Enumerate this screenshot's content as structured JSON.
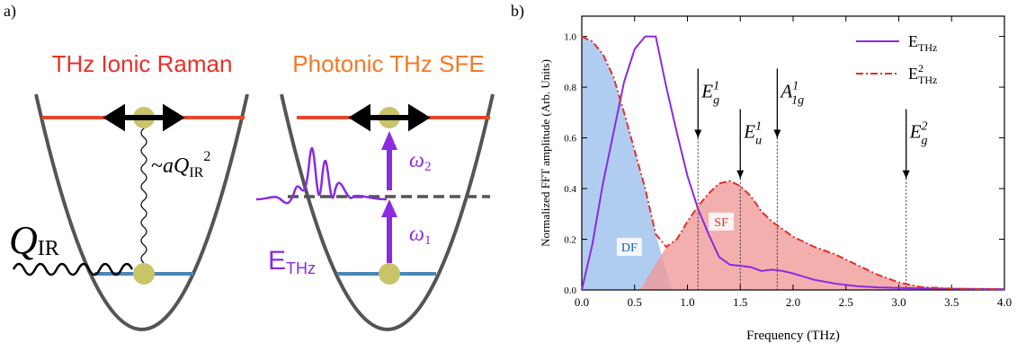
{
  "panel_a": {
    "label": "a)",
    "title_left": "THz Ionic Raman",
    "title_right": "Photonic THz SFE",
    "coupling": {
      "prefix": "~",
      "a": "a",
      "q": "Q",
      "sub": "IR",
      "sup": "2"
    },
    "q_ir": {
      "q": "Q",
      "sub": "IR"
    },
    "e_thz": {
      "e": "E",
      "sub": "THz"
    },
    "omega_2": {
      "w": "ω",
      "sub": "2"
    },
    "omega_1": {
      "w": "ω",
      "sub": "1"
    }
  },
  "chart_data": {
    "type": "line",
    "panel_label": "b)",
    "x_label": "Frequency (THz)",
    "y_label": "Normalized FFT amplitude (Arb. Units)",
    "x": [
      0,
      0.1,
      0.2,
      0.3,
      0.4,
      0.5,
      0.6,
      0.7,
      0.8,
      0.9,
      1.0,
      1.1,
      1.2,
      1.3,
      1.4,
      1.5,
      1.6,
      1.7,
      1.8,
      1.9,
      2.0,
      2.2,
      2.4,
      2.6,
      2.8,
      3.0,
      3.2,
      3.5,
      4.0
    ],
    "series": [
      {
        "name": "E",
        "name_sub": "THz",
        "color": "#8a2be2",
        "values": [
          0,
          0.18,
          0.42,
          0.62,
          0.82,
          0.95,
          1.0,
          1.0,
          0.8,
          0.62,
          0.45,
          0.32,
          0.22,
          0.13,
          0.1,
          0.095,
          0.09,
          0.075,
          0.08,
          0.075,
          0.065,
          0.04,
          0.025,
          0.015,
          0.01,
          0.008,
          0.006,
          0.005,
          0.003
        ]
      },
      {
        "name": "E",
        "name_sup": "2",
        "name_sub": "THz",
        "color": "#e0302a",
        "values": [
          1.0,
          0.98,
          0.93,
          0.84,
          0.7,
          0.55,
          0.4,
          0.22,
          0.17,
          0.2,
          0.27,
          0.33,
          0.38,
          0.42,
          0.43,
          0.41,
          0.37,
          0.31,
          0.27,
          0.24,
          0.21,
          0.17,
          0.14,
          0.1,
          0.06,
          0.03,
          0.012,
          0.005,
          0.002
        ]
      }
    ],
    "regions": [
      "DF",
      "SF"
    ],
    "modes": [
      {
        "x": 1.1,
        "label": "E",
        "sup": "1",
        "sub": "g"
      },
      {
        "x": 1.5,
        "label": "E",
        "sup": "1",
        "sub": "u"
      },
      {
        "x": 1.85,
        "label": "A",
        "sup": "1",
        "sub": "1g"
      },
      {
        "x": 3.07,
        "label": "E",
        "sup": "2",
        "sub": "g"
      }
    ],
    "xlim": [
      0,
      4
    ],
    "ylim": [
      0,
      1.08
    ],
    "xticks": [
      {
        "value": 0,
        "label": "0.0"
      },
      {
        "value": 0.5,
        "label": "0.5"
      },
      {
        "value": 1,
        "label": "1.0"
      },
      {
        "value": 1.5,
        "label": "1.5"
      },
      {
        "value": 2,
        "label": "2.0"
      },
      {
        "value": 2.5,
        "label": "2.5"
      },
      {
        "value": 3,
        "label": "3.0"
      },
      {
        "value": 3.5,
        "label": "3.5"
      },
      {
        "value": 4,
        "label": "4.0"
      }
    ],
    "yticks": [
      {
        "value": 0,
        "label": "0.0"
      },
      {
        "value": 0.2,
        "label": "0.2"
      },
      {
        "value": 0.4,
        "label": "0.4"
      },
      {
        "value": 0.6,
        "label": "0.6"
      },
      {
        "value": 0.8,
        "label": "0.8"
      },
      {
        "value": 1,
        "label": "1.0"
      }
    ],
    "region_colors": [
      "#a9c6ef",
      "#f09a9a"
    ]
  }
}
